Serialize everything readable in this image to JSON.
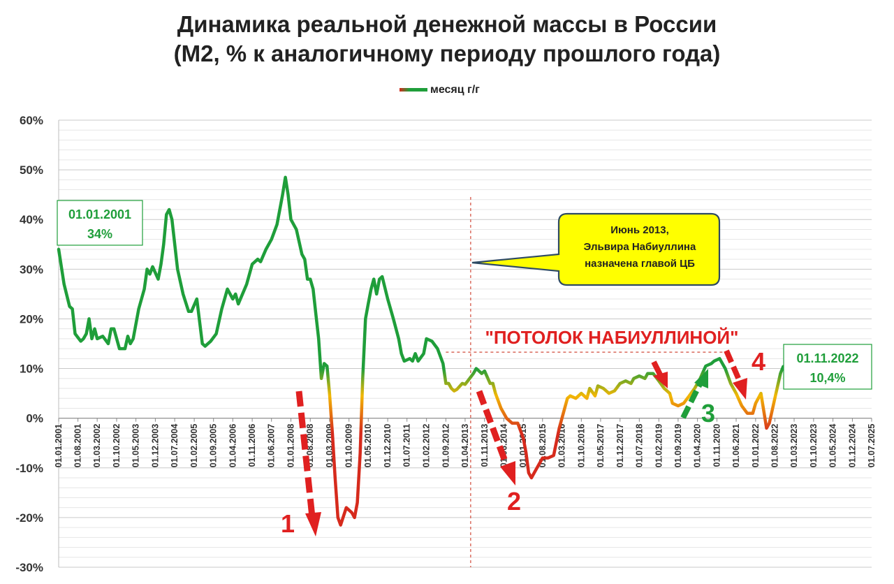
{
  "chart_data": {
    "type": "line",
    "title": "Динамика реальной денежной массы в России",
    "subtitle": "(М2, % к аналогичному периоду прошлого года)",
    "legend": {
      "label": "месяц г/г",
      "placement": "top-center"
    },
    "ylim": [
      -30,
      60
    ],
    "yticks": [
      "60%",
      "50%",
      "40%",
      "30%",
      "20%",
      "10%",
      "0%",
      "-10%",
      "-20%",
      "-30%"
    ],
    "ytick_values": [
      60,
      50,
      40,
      30,
      20,
      10,
      0,
      -10,
      -20,
      -30
    ],
    "x_range": [
      "2001-01-01",
      "2025-07-01"
    ],
    "xticks": [
      "01.01.2001",
      "01.08.2001",
      "01.03.2002",
      "01.10.2002",
      "01.05.2003",
      "01.12.2003",
      "01.07.2004",
      "01.02.2005",
      "01.09.2005",
      "01.04.2006",
      "01.11.2006",
      "01.06.2007",
      "01.01.2008",
      "01.08.2008",
      "01.03.2009",
      "01.10.2009",
      "01.05.2010",
      "01.12.2010",
      "01.07.2011",
      "01.02.2012",
      "01.09.2012",
      "01.04.2013",
      "01.11.2013",
      "01.06.2014",
      "01.01.2015",
      "01.08.2015",
      "01.03.2016",
      "01.10.2016",
      "01.05.2017",
      "01.12.2017",
      "01.07.2018",
      "01.02.2019",
      "01.09.2019",
      "01.04.2020",
      "01.11.2020",
      "01.06.2021",
      "01.01.2022",
      "01.08.2022",
      "01.03.2023",
      "01.10.2023",
      "01.05.2024",
      "01.12.2024",
      "01.07.2025"
    ],
    "grid": true,
    "series": [
      {
        "name": "месяц г/г",
        "points": [
          [
            "2001-01-01",
            34
          ],
          [
            "2001-03-01",
            27
          ],
          [
            "2001-05-01",
            22.5
          ],
          [
            "2001-06-01",
            22
          ],
          [
            "2001-07-01",
            17
          ],
          [
            "2001-09-01",
            15.5
          ],
          [
            "2001-10-01",
            16
          ],
          [
            "2001-11-01",
            17
          ],
          [
            "2001-12-01",
            20
          ],
          [
            "2002-01-01",
            16
          ],
          [
            "2002-02-01",
            18
          ],
          [
            "2002-03-01",
            16
          ],
          [
            "2002-05-01",
            16.5
          ],
          [
            "2002-07-01",
            15
          ],
          [
            "2002-08-01",
            18
          ],
          [
            "2002-09-01",
            18
          ],
          [
            "2002-11-01",
            14
          ],
          [
            "2003-01-01",
            14
          ],
          [
            "2003-02-01",
            16.5
          ],
          [
            "2003-03-01",
            15
          ],
          [
            "2003-04-01",
            16
          ],
          [
            "2003-06-01",
            22
          ],
          [
            "2003-08-01",
            26
          ],
          [
            "2003-09-01",
            30
          ],
          [
            "2003-10-01",
            29
          ],
          [
            "2003-11-01",
            30.5
          ],
          [
            "2004-01-01",
            28
          ],
          [
            "2004-02-01",
            31
          ],
          [
            "2004-03-01",
            35
          ],
          [
            "2004-04-01",
            41
          ],
          [
            "2004-05-01",
            42
          ],
          [
            "2004-06-01",
            40
          ],
          [
            "2004-08-01",
            30
          ],
          [
            "2004-10-01",
            25
          ],
          [
            "2004-12-01",
            21.5
          ],
          [
            "2005-01-01",
            21.5
          ],
          [
            "2005-03-01",
            24
          ],
          [
            "2005-05-01",
            15
          ],
          [
            "2005-06-01",
            14.5
          ],
          [
            "2005-08-01",
            15.5
          ],
          [
            "2005-10-01",
            17
          ],
          [
            "2005-12-01",
            22
          ],
          [
            "2006-02-01",
            26
          ],
          [
            "2006-04-01",
            24
          ],
          [
            "2006-05-01",
            25
          ],
          [
            "2006-06-01",
            23
          ],
          [
            "2006-09-01",
            27
          ],
          [
            "2006-11-01",
            31
          ],
          [
            "2007-01-01",
            32
          ],
          [
            "2007-02-01",
            31.5
          ],
          [
            "2007-04-01",
            34
          ],
          [
            "2007-06-01",
            36
          ],
          [
            "2007-08-01",
            39
          ],
          [
            "2007-10-01",
            45
          ],
          [
            "2007-11-01",
            48.5
          ],
          [
            "2007-12-01",
            45
          ],
          [
            "2008-01-01",
            40
          ],
          [
            "2008-03-01",
            38
          ],
          [
            "2008-05-01",
            33
          ],
          [
            "2008-06-01",
            32
          ],
          [
            "2008-07-01",
            28
          ],
          [
            "2008-08-01",
            28
          ],
          [
            "2008-09-01",
            26
          ],
          [
            "2008-10-01",
            21
          ],
          [
            "2008-11-01",
            16
          ],
          [
            "2008-12-01",
            8
          ],
          [
            "2009-01-01",
            11
          ],
          [
            "2009-02-01",
            10.5
          ],
          [
            "2009-03-01",
            5
          ],
          [
            "2009-04-01",
            -3
          ],
          [
            "2009-05-01",
            -12
          ],
          [
            "2009-06-01",
            -20
          ],
          [
            "2009-07-01",
            -21.5
          ],
          [
            "2009-09-01",
            -18
          ],
          [
            "2009-11-01",
            -19
          ],
          [
            "2009-12-01",
            -20
          ],
          [
            "2010-01-01",
            -17
          ],
          [
            "2010-02-01",
            -7
          ],
          [
            "2010-03-01",
            8
          ],
          [
            "2010-04-01",
            20
          ],
          [
            "2010-05-01",
            23
          ],
          [
            "2010-06-01",
            26
          ],
          [
            "2010-07-01",
            28
          ],
          [
            "2010-08-01",
            25
          ],
          [
            "2010-09-01",
            28
          ],
          [
            "2010-10-01",
            28.5
          ],
          [
            "2010-12-01",
            24
          ],
          [
            "2011-02-01",
            20
          ],
          [
            "2011-04-01",
            16
          ],
          [
            "2011-05-01",
            13
          ],
          [
            "2011-06-01",
            11.5
          ],
          [
            "2011-08-01",
            12
          ],
          [
            "2011-09-01",
            11.5
          ],
          [
            "2011-10-01",
            13
          ],
          [
            "2011-11-01",
            11.5
          ],
          [
            "2012-01-01",
            13
          ],
          [
            "2012-02-01",
            16
          ],
          [
            "2012-04-01",
            15.5
          ],
          [
            "2012-06-01",
            14
          ],
          [
            "2012-08-01",
            11
          ],
          [
            "2012-09-01",
            7
          ],
          [
            "2012-10-01",
            7
          ],
          [
            "2012-11-01",
            6
          ],
          [
            "2012-12-01",
            5.5
          ],
          [
            "2013-01-01",
            5.8
          ],
          [
            "2013-03-01",
            7
          ],
          [
            "2013-04-01",
            6.8
          ],
          [
            "2013-05-01",
            7.5
          ],
          [
            "2013-07-01",
            9
          ],
          [
            "2013-08-01",
            10
          ],
          [
            "2013-09-01",
            9.5
          ],
          [
            "2013-10-01",
            9
          ],
          [
            "2013-11-01",
            9.5
          ],
          [
            "2014-01-01",
            7
          ],
          [
            "2014-02-01",
            7
          ],
          [
            "2014-03-01",
            5
          ],
          [
            "2014-05-01",
            2
          ],
          [
            "2014-07-01",
            0
          ],
          [
            "2014-09-01",
            -1
          ],
          [
            "2014-11-01",
            -1
          ],
          [
            "2015-01-01",
            -4
          ],
          [
            "2015-02-01",
            -7
          ],
          [
            "2015-03-01",
            -11
          ],
          [
            "2015-04-01",
            -12
          ],
          [
            "2015-06-01",
            -10
          ],
          [
            "2015-08-01",
            -8
          ],
          [
            "2015-10-01",
            -8
          ],
          [
            "2015-12-01",
            -7.5
          ],
          [
            "2016-02-01",
            -2
          ],
          [
            "2016-04-01",
            2
          ],
          [
            "2016-05-01",
            4
          ],
          [
            "2016-06-01",
            4.5
          ],
          [
            "2016-08-01",
            4
          ],
          [
            "2016-10-01",
            5
          ],
          [
            "2016-12-01",
            4
          ],
          [
            "2017-01-01",
            6
          ],
          [
            "2017-03-01",
            4.5
          ],
          [
            "2017-04-01",
            6.5
          ],
          [
            "2017-06-01",
            6
          ],
          [
            "2017-08-01",
            5
          ],
          [
            "2017-10-01",
            5.5
          ],
          [
            "2017-12-01",
            7
          ],
          [
            "2018-02-01",
            7.5
          ],
          [
            "2018-04-01",
            7
          ],
          [
            "2018-05-01",
            8
          ],
          [
            "2018-07-01",
            8.5
          ],
          [
            "2018-09-01",
            8
          ],
          [
            "2018-10-01",
            9
          ],
          [
            "2018-12-01",
            9
          ],
          [
            "2019-02-01",
            7.5
          ],
          [
            "2019-04-01",
            6
          ],
          [
            "2019-06-01",
            5
          ],
          [
            "2019-07-01",
            3
          ],
          [
            "2019-09-01",
            2.5
          ],
          [
            "2019-11-01",
            3
          ],
          [
            "2020-01-01",
            4.5
          ],
          [
            "2020-03-01",
            6
          ],
          [
            "2020-05-01",
            8
          ],
          [
            "2020-07-01",
            10.5
          ],
          [
            "2020-09-01",
            11
          ],
          [
            "2020-10-01",
            11.5
          ],
          [
            "2020-12-01",
            12
          ],
          [
            "2021-02-01",
            10
          ],
          [
            "2021-04-01",
            7
          ],
          [
            "2021-06-01",
            5
          ],
          [
            "2021-08-01",
            2.5
          ],
          [
            "2021-10-01",
            1
          ],
          [
            "2021-12-01",
            1
          ],
          [
            "2022-01-01",
            3
          ],
          [
            "2022-03-01",
            5
          ],
          [
            "2022-05-01",
            -2
          ],
          [
            "2022-06-01",
            -1
          ],
          [
            "2022-08-01",
            4
          ],
          [
            "2022-10-01",
            9
          ],
          [
            "2022-11-01",
            10.4
          ]
        ]
      }
    ],
    "color_scale": {
      "high": "#1f9e3a",
      "mid": "#f2b705",
      "low": "#d62a1c",
      "high_from": 10,
      "low_to": -3
    },
    "annotations": {
      "start_label": {
        "date": "01.01.2001",
        "value": "34%"
      },
      "end_label": {
        "date": "01.11.2022",
        "value": "10,4%"
      },
      "callout": {
        "line1": "Июнь 2013,",
        "line2": "Эльвира Набиуллина",
        "line3": "назначена главой ЦБ"
      },
      "ceiling_label": "\"ПОТОЛОК НАБИУЛЛИНОЙ\"",
      "marker_1": "1",
      "marker_2": "2",
      "marker_3": "3",
      "marker_4": "4"
    }
  }
}
